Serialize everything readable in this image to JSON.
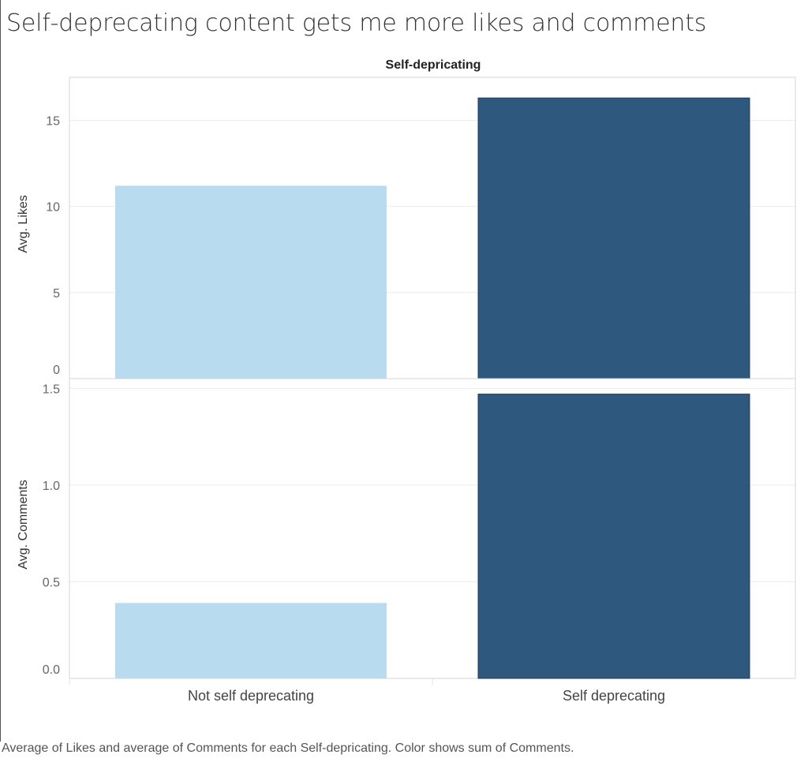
{
  "title": "Self-deprecating content gets me more likes and comments",
  "column_header": "Self-depricating",
  "caption": "Average of Likes and average of Comments for each Self-depricating.  Color shows sum of Comments.",
  "colors": {
    "light": "#b9dbef",
    "dark": "#2e587e",
    "dark_border": "#1e3a5c"
  },
  "chart_data": [
    {
      "type": "bar",
      "ylabel": "Avg. Likes",
      "categories": [
        "Not self deprecating",
        "Self deprecating"
      ],
      "values": [
        11.2,
        16.3
      ],
      "ylim": [
        0,
        17.5
      ],
      "yticks": [
        0,
        5,
        10,
        15
      ],
      "ytick_labels": [
        "0",
        "5",
        "10",
        "15"
      ],
      "grid": true
    },
    {
      "type": "bar",
      "ylabel": "Avg. Comments",
      "categories": [
        "Not self deprecating",
        "Self deprecating"
      ],
      "values": [
        0.39,
        1.47
      ],
      "ylim": [
        0,
        1.55
      ],
      "yticks": [
        0,
        0.5,
        1.0,
        1.5
      ],
      "ytick_labels": [
        "0.0",
        "0.5",
        "1.0",
        "1.5"
      ],
      "grid": true
    }
  ],
  "x_categories": [
    "Not self deprecating",
    "Self deprecating"
  ]
}
